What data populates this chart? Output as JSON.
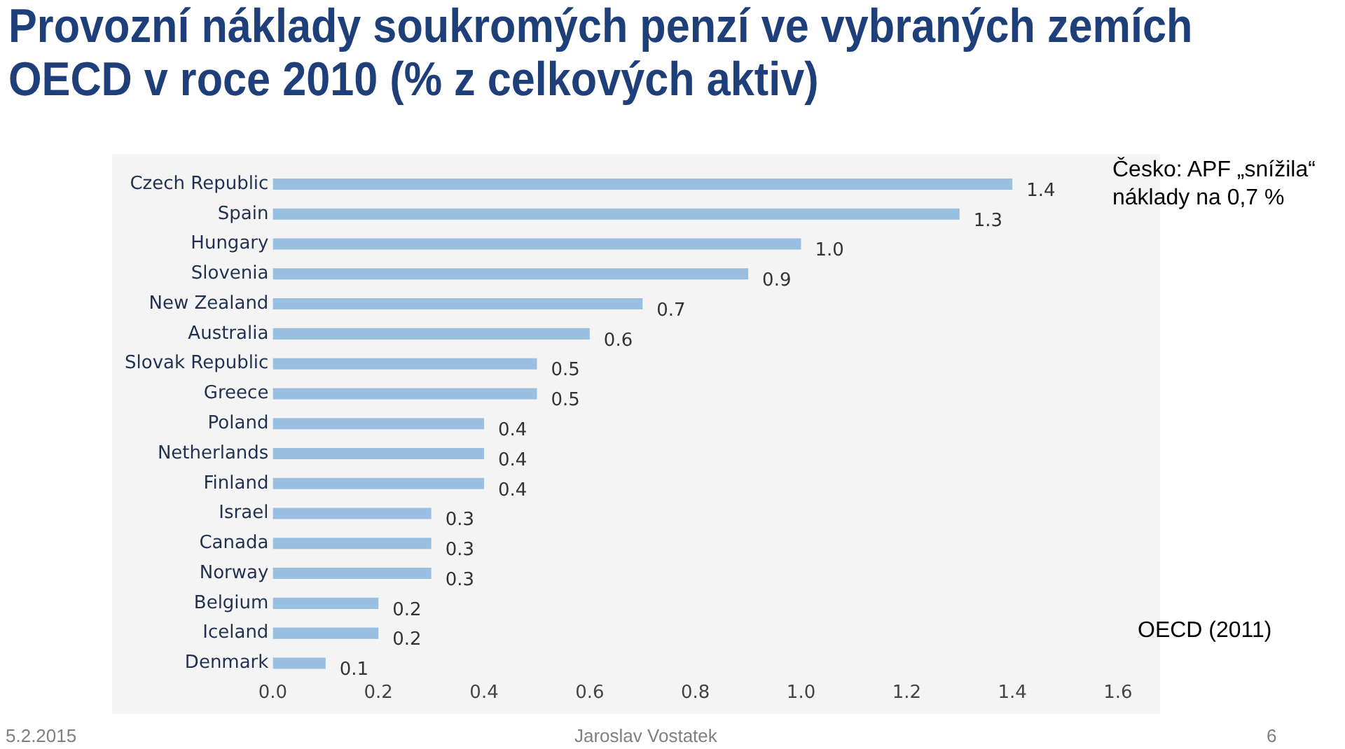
{
  "chart_data": {
    "type": "bar",
    "orientation": "horizontal",
    "title": "Provozní náklady soukromých penzí ve vybraných zemích OECD v roce 2010 (% z celkových aktiv)",
    "categories": [
      "Czech Republic",
      "Spain",
      "Hungary",
      "Slovenia",
      "New Zealand",
      "Australia",
      "Slovak Republic",
      "Greece",
      "Poland",
      "Netherlands",
      "Finland",
      "Israel",
      "Canada",
      "Norway",
      "Belgium",
      "Iceland",
      "Denmark"
    ],
    "values": [
      1.4,
      1.3,
      1.0,
      0.9,
      0.7,
      0.6,
      0.5,
      0.5,
      0.4,
      0.4,
      0.4,
      0.3,
      0.3,
      0.3,
      0.2,
      0.2,
      0.1
    ],
    "value_labels": [
      "1.4",
      "1.3",
      "1.0",
      "0.9",
      "0.7",
      "0.6",
      "0.5",
      "0.5",
      "0.4",
      "0.4",
      "0.4",
      "0.3",
      "0.3",
      "0.3",
      "0.2",
      "0.2",
      "0.1"
    ],
    "color": "#9bbfe0",
    "xlim": [
      0,
      1.6
    ],
    "xticks": [
      {
        "value": 0,
        "label": "0.0"
      },
      {
        "value": 0.2,
        "label": "0.2"
      },
      {
        "value": 0.4,
        "label": "0.4"
      },
      {
        "value": 0.6,
        "label": "0.6"
      },
      {
        "value": 0.8,
        "label": "0.8"
      },
      {
        "value": 1.0,
        "label": "1.0"
      },
      {
        "value": 1.2,
        "label": "1.2"
      },
      {
        "value": 1.4,
        "label": "1.4"
      },
      {
        "value": 1.6,
        "label": "1.6"
      }
    ],
    "grid": false,
    "legend": false,
    "annotations": [
      "Česko: APF „snížila“ náklady na 0,7 %",
      "OECD (2011)",
      "5.2.2015",
      "Jaroslav Vostatek",
      "6"
    ]
  }
}
